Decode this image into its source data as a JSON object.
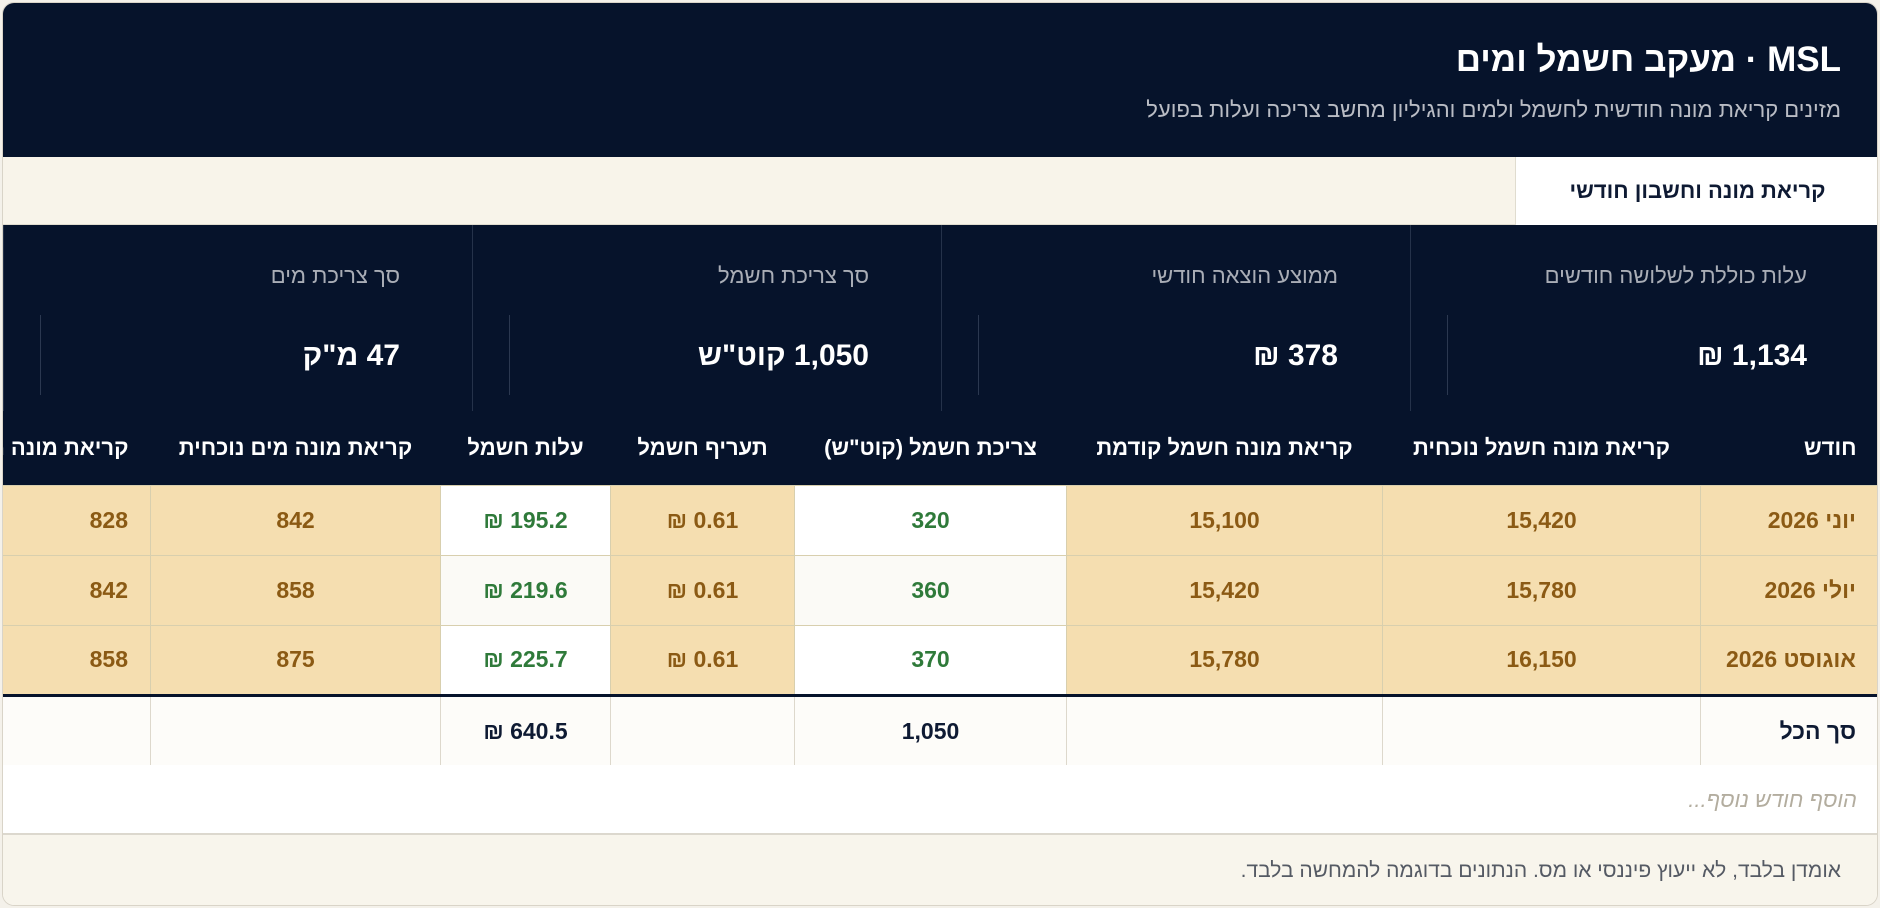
{
  "header": {
    "title": "MSL · מעקב חשמל ומים",
    "subtitle": "מזינים קריאת מונה חודשית לחשמל ולמים והגיליון מחשב צריכה ועלות בפועל"
  },
  "tabs": [
    {
      "label": "קריאת מונה וחשבון חודשי"
    }
  ],
  "stats": [
    {
      "label": "עלות כוללת לשלושה חודשים",
      "value": "1,134 ₪"
    },
    {
      "label": "ממוצע הוצאה חודשי",
      "value": "378 ₪"
    },
    {
      "label": "סך צריכת חשמל",
      "value": "1,050 קוט\"ש"
    },
    {
      "label": "סך צריכת מים",
      "value": "47 מ\"ק"
    }
  ],
  "table": {
    "columns": [
      "חודש",
      "קריאת מונה חשמל נוכחית",
      "קריאת מונה חשמל קודמת",
      "צריכת חשמל (קוט\"ש)",
      "תעריף חשמל",
      "עלות חשמל",
      "קריאת מונה מים נוכחית",
      "קריאת מונה מים קודמת"
    ],
    "rows": [
      [
        "יוני 2026",
        "15,420",
        "15,100",
        "320",
        "0.61 ₪",
        "195.2 ₪",
        "842",
        "828"
      ],
      [
        "יולי 2026",
        "15,780",
        "15,420",
        "360",
        "0.61 ₪",
        "219.6 ₪",
        "858",
        "842"
      ],
      [
        "אוגוסט 2026",
        "16,150",
        "15,780",
        "370",
        "0.61 ₪",
        "225.7 ₪",
        "875",
        "858"
      ]
    ],
    "total": [
      "סך הכל",
      "",
      "",
      "1,050",
      "",
      "640.5 ₪",
      "",
      ""
    ]
  },
  "add_row": {
    "placeholder": "הוסף חודש נוסף..."
  },
  "footer": {
    "text": "אומדן בלבד, לא ייעוץ פיננסי או מס. הנתונים בדוגמה להמחשה בלבד."
  }
}
